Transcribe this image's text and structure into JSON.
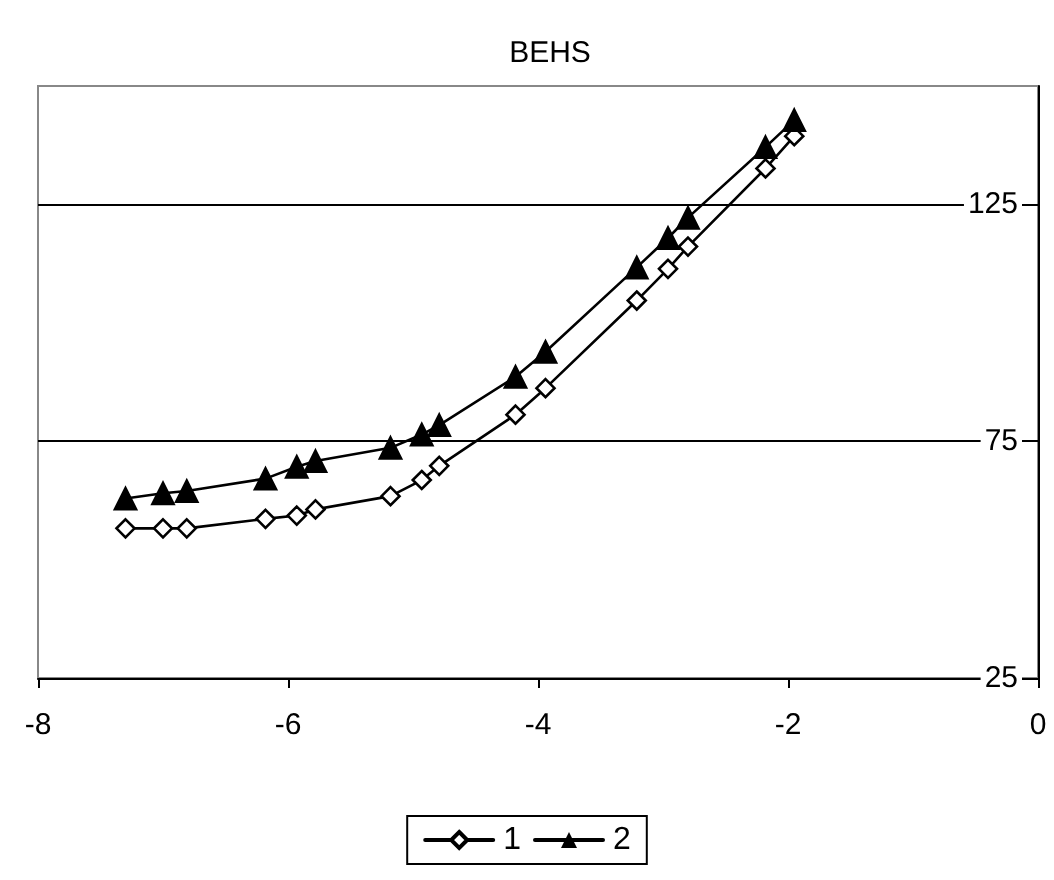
{
  "chart_data": {
    "type": "line",
    "title": "BEHS",
    "xlim": [
      -8,
      0
    ],
    "xticks": [
      -8,
      -6,
      -4,
      -2,
      0
    ],
    "ylim": [
      25,
      150
    ],
    "yticks": [
      25,
      75,
      125
    ],
    "grid": "y",
    "legend": "bottom",
    "line_style": "solid",
    "series": [
      {
        "name": "1",
        "color": "#000000",
        "marker": "diamond",
        "x": [
          -7.3,
          -7.0,
          -6.81,
          -6.18,
          -5.93,
          -5.78,
          -5.18,
          -4.93,
          -4.79,
          -4.18,
          -3.94,
          -3.21,
          -2.96,
          -2.8,
          -2.18,
          -1.95
        ],
        "values": [
          56.6,
          56.6,
          56.6,
          58.6,
          59.3,
          60.6,
          63.4,
          66.8,
          69.8,
          80.6,
          86.2,
          104.7,
          111.4,
          116.1,
          132.6,
          139.4
        ]
      },
      {
        "name": "2",
        "color": "#000000",
        "marker": "triangle",
        "x": [
          -7.3,
          -7.0,
          -6.81,
          -6.18,
          -5.93,
          -5.78,
          -5.18,
          -4.93,
          -4.79,
          -4.18,
          -3.94,
          -3.21,
          -2.96,
          -2.8,
          -2.18,
          -1.95
        ],
        "values": [
          62.9,
          64.0,
          64.5,
          67.1,
          69.6,
          70.8,
          73.6,
          76.4,
          78.4,
          88.6,
          93.9,
          111.7,
          117.9,
          122.2,
          137.1,
          142.8
        ]
      }
    ]
  }
}
